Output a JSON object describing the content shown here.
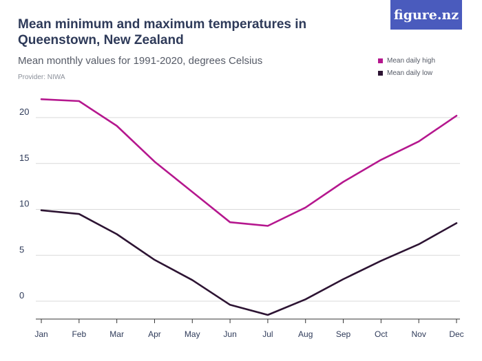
{
  "header": {
    "title": "Mean minimum and maximum temperatures in Queenstown, New Zealand",
    "subtitle": "Mean monthly values for 1991-2020, degrees Celsius",
    "provider": "Provider: NIWA",
    "logo_text": "figure.nz"
  },
  "colors": {
    "high": "#b5178e",
    "low": "#2d1433",
    "grid": "#d9d9d9",
    "axis_text": "#2e3a59",
    "logo_bg": "#4a5bbd"
  },
  "chart_data": {
    "type": "line",
    "title": "Mean minimum and maximum temperatures in Queenstown, New Zealand",
    "subtitle": "Mean monthly values for 1991-2020, degrees Celsius",
    "categories": [
      "Jan",
      "Feb",
      "Mar",
      "Apr",
      "May",
      "Jun",
      "Jul",
      "Aug",
      "Sep",
      "Oct",
      "Nov",
      "Dec"
    ],
    "series": [
      {
        "name": "Mean daily high",
        "values": [
          22.0,
          21.8,
          19.1,
          15.2,
          11.9,
          8.6,
          8.2,
          10.2,
          13.0,
          15.4,
          17.4,
          20.2
        ]
      },
      {
        "name": "Mean daily low",
        "values": [
          9.9,
          9.5,
          7.3,
          4.5,
          2.3,
          -0.4,
          -1.5,
          0.2,
          2.4,
          4.4,
          6.2,
          8.5
        ]
      }
    ],
    "yticks": [
      0,
      5,
      10,
      15,
      20
    ],
    "ylim": [
      -2,
      23
    ],
    "xlabel": "",
    "ylabel": "",
    "grid": true,
    "legend": "top-right"
  }
}
